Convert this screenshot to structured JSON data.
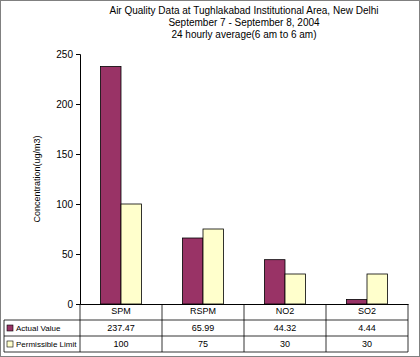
{
  "chart_data": {
    "type": "bar",
    "title": "Air Quality Data at Tughlakabad Institutional Area, New Delhi",
    "subtitle": [
      "September 7  - September 8, 2004",
      "24 hourly average(6 am to 6 am)"
    ],
    "y_label": "Concentration(ug/m3)",
    "categories": [
      "SPM",
      "RSPM",
      "NO2",
      "SO2"
    ],
    "series": [
      {
        "name": "Actual Value",
        "color": "#993366",
        "values": [
          237.47,
          65.99,
          44.32,
          4.44
        ]
      },
      {
        "name": "Permissible Limit",
        "color": "#FFFFCC",
        "values": [
          100,
          75,
          30,
          30
        ]
      }
    ],
    "ylim": [
      0,
      250
    ],
    "yticks": [
      0,
      50,
      100,
      150,
      200,
      250
    ],
    "grid": false,
    "legend": "bottom",
    "data_labels": true
  }
}
